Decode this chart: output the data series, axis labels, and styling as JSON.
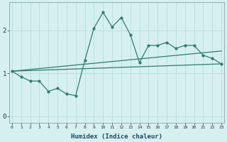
{
  "xlabel": "Humidex (Indice chaleur)",
  "background_color": "#d6f0f0",
  "grid_color": "#b8dede",
  "line_color": "#2e7d6e",
  "x_values": [
    0,
    1,
    2,
    3,
    4,
    5,
    6,
    7,
    8,
    9,
    10,
    11,
    12,
    13,
    14,
    15,
    16,
    17,
    18,
    19,
    20,
    21,
    22,
    23
  ],
  "line1": [
    1.05,
    0.92,
    0.82,
    0.82,
    0.58,
    0.65,
    0.52,
    0.48,
    1.3,
    2.05,
    2.42,
    2.08,
    2.3,
    1.9,
    1.25,
    1.65,
    1.65,
    1.72,
    1.58,
    1.65,
    1.65,
    1.42,
    1.35,
    1.22
  ],
  "line2_x": [
    0,
    23
  ],
  "line2_y": [
    1.05,
    1.22
  ],
  "line3_x": [
    0,
    23
  ],
  "line3_y": [
    1.05,
    1.52
  ],
  "xlim": [
    -0.3,
    23.3
  ],
  "ylim": [
    -0.15,
    2.65
  ],
  "yticks": [
    0,
    1,
    2
  ],
  "xtick_labels": [
    "0",
    "1",
    "2",
    "3",
    "4",
    "5",
    "6",
    "7",
    "8",
    "9",
    "10",
    "11",
    "12",
    "13",
    "14",
    "15",
    "16",
    "17",
    "18",
    "19",
    "20",
    "21",
    "22",
    "23"
  ]
}
